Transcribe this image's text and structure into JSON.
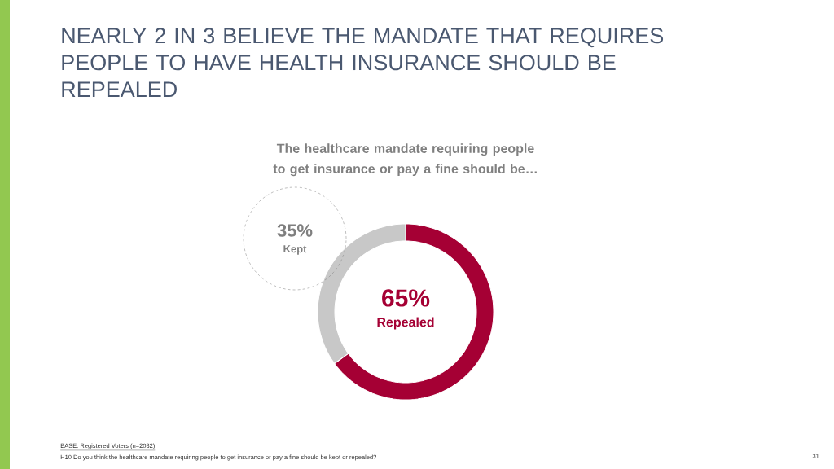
{
  "chart_data": {
    "type": "donut",
    "title": "NEARLY 2 IN 3 BELIEVE THE MANDATE THAT REQUIRES PEOPLE TO HAVE HEALTH INSURANCE SHOULD BE REPEALED",
    "subtitle": "The healthcare mandate requiring people to get insurance or pay a fine should be…",
    "categories": [
      "Repealed",
      "Kept"
    ],
    "values": [
      65,
      35
    ],
    "colors": [
      "#a50034",
      "#c8c8c8"
    ],
    "value_labels": [
      "65%",
      "35%"
    ],
    "annotations": [
      "BASE: Registered Voters (n=2032)",
      "H10 Do you think the healthcare mandate requiring people to get insurance or pay a fine should be kept or repealed?",
      "31"
    ]
  }
}
